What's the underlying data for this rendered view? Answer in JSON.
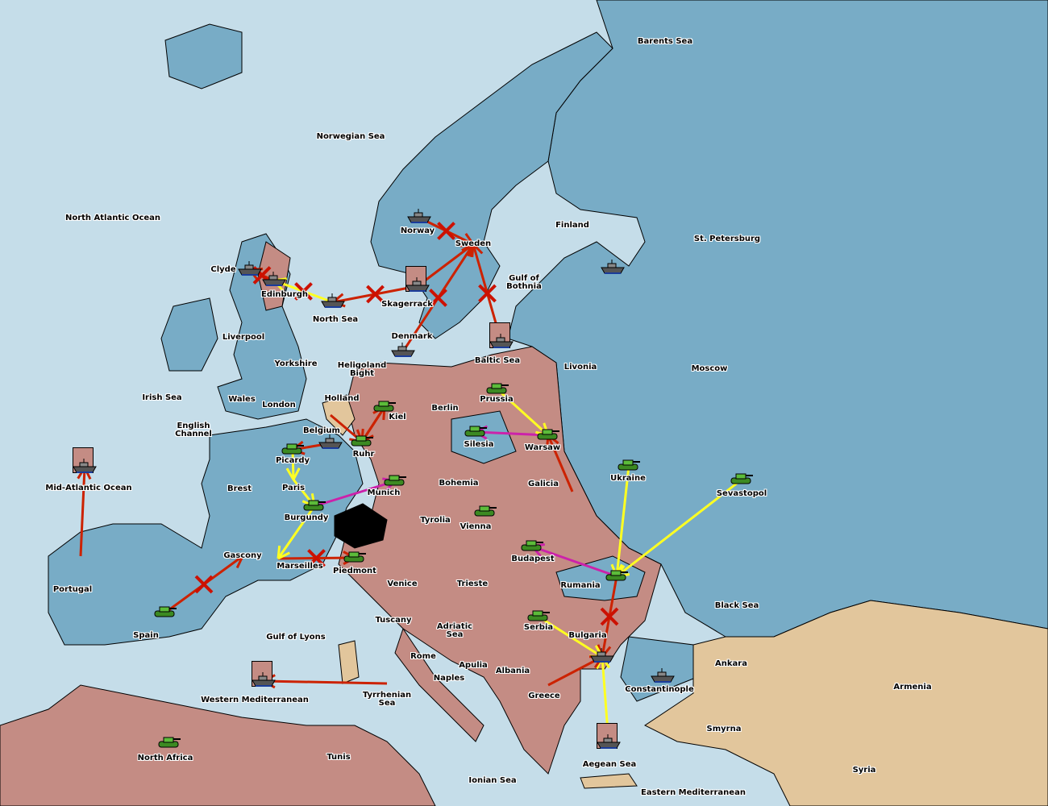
{
  "colors": {
    "sea": "#c5dde9",
    "blue_power": "#78acc6",
    "red_power": "#c48c84",
    "tan_power": "#e2c69c",
    "move": "#cc2200",
    "support": "#ffff22",
    "convoy": "#cc22aa"
  },
  "regions": [
    {
      "name": "Barents Sea"
    },
    {
      "name": "Norwegian Sea"
    },
    {
      "name": "North Atlantic Ocean"
    },
    {
      "name": "Finland"
    },
    {
      "name": "St. Petersburg"
    },
    {
      "name": "Norway"
    },
    {
      "name": "Sweden"
    },
    {
      "name": "Gulf of\nBothnia"
    },
    {
      "name": "Clyde"
    },
    {
      "name": "Edinburgh"
    },
    {
      "name": "Skagerrack"
    },
    {
      "name": "North Sea"
    },
    {
      "name": "Denmark"
    },
    {
      "name": "Liverpool"
    },
    {
      "name": "Baltic Sea"
    },
    {
      "name": "Livonia"
    },
    {
      "name": "Moscow"
    },
    {
      "name": "Yorkshire"
    },
    {
      "name": "Heligoland\nBight"
    },
    {
      "name": "Irish Sea"
    },
    {
      "name": "Wales"
    },
    {
      "name": "London"
    },
    {
      "name": "Holland"
    },
    {
      "name": "Prussia"
    },
    {
      "name": "Berlin"
    },
    {
      "name": "Kiel"
    },
    {
      "name": "English\nChannel"
    },
    {
      "name": "Belgium"
    },
    {
      "name": "Silesia"
    },
    {
      "name": "Warsaw"
    },
    {
      "name": "Ruhr"
    },
    {
      "name": "Picardy"
    },
    {
      "name": "Ukraine"
    },
    {
      "name": "Paris"
    },
    {
      "name": "Bohemia"
    },
    {
      "name": "Galicia"
    },
    {
      "name": "Mid-Atlantic Ocean"
    },
    {
      "name": "Brest"
    },
    {
      "name": "Munich"
    },
    {
      "name": "Sevastopol"
    },
    {
      "name": "Burgundy"
    },
    {
      "name": "Tyrolia"
    },
    {
      "name": "Vienna"
    },
    {
      "name": "Gascony"
    },
    {
      "name": "Budapest"
    },
    {
      "name": "Marseilles"
    },
    {
      "name": "Piedmont"
    },
    {
      "name": "Venice"
    },
    {
      "name": "Trieste"
    },
    {
      "name": "Rumania"
    },
    {
      "name": "Portugal"
    },
    {
      "name": "Black Sea"
    },
    {
      "name": "Tuscany"
    },
    {
      "name": "Adriatic\nSea"
    },
    {
      "name": "Serbia"
    },
    {
      "name": "Bulgaria"
    },
    {
      "name": "Spain"
    },
    {
      "name": "Gulf of Lyons"
    },
    {
      "name": "Rome"
    },
    {
      "name": "Apulia"
    },
    {
      "name": "Ankara"
    },
    {
      "name": "Albania"
    },
    {
      "name": "Naples"
    },
    {
      "name": "Armenia"
    },
    {
      "name": "Constantinople"
    },
    {
      "name": "Greece"
    },
    {
      "name": "Tyrrhenian\nSea"
    },
    {
      "name": "Western Mediterranean"
    },
    {
      "name": "Smyrna"
    },
    {
      "name": "Tunis"
    },
    {
      "name": "North Africa"
    },
    {
      "name": "Aegean Sea"
    },
    {
      "name": "Syria"
    },
    {
      "name": "Ionian Sea"
    },
    {
      "name": "Eastern Mediterranean"
    }
  ],
  "units": [
    {
      "type": "fleet",
      "at": "Clyde"
    },
    {
      "type": "fleet",
      "at": "Edinburgh"
    },
    {
      "type": "fleet",
      "at": "North Sea"
    },
    {
      "type": "fleet",
      "at": "Norway"
    },
    {
      "type": "fleet",
      "at": "Skagerrack",
      "dislodged": true
    },
    {
      "type": "fleet",
      "at": "Denmark"
    },
    {
      "type": "fleet",
      "at": "Baltic Sea",
      "dislodged": true
    },
    {
      "type": "fleet",
      "at": "Belgium"
    },
    {
      "type": "fleet",
      "at": "St. Petersburg"
    },
    {
      "type": "fleet",
      "at": "Mid-Atlantic Ocean",
      "dislodged": true
    },
    {
      "type": "fleet",
      "at": "Western Mediterranean",
      "dislodged": true
    },
    {
      "type": "fleet",
      "at": "Bulgaria"
    },
    {
      "type": "fleet",
      "at": "Constantinople"
    },
    {
      "type": "fleet",
      "at": "Aegean Sea",
      "dislodged": true
    },
    {
      "type": "army",
      "at": "Kiel"
    },
    {
      "type": "army",
      "at": "Ruhr"
    },
    {
      "type": "army",
      "at": "Picardy"
    },
    {
      "type": "army",
      "at": "Burgundy"
    },
    {
      "type": "army",
      "at": "Munich"
    },
    {
      "type": "army",
      "at": "Prussia"
    },
    {
      "type": "army",
      "at": "Silesia"
    },
    {
      "type": "army",
      "at": "Warsaw"
    },
    {
      "type": "army",
      "at": "Vienna"
    },
    {
      "type": "army",
      "at": "Budapest"
    },
    {
      "type": "army",
      "at": "Rumania"
    },
    {
      "type": "army",
      "at": "Ukraine"
    },
    {
      "type": "army",
      "at": "Sevastopol"
    },
    {
      "type": "army",
      "at": "Serbia"
    },
    {
      "type": "army",
      "at": "Piedmont"
    },
    {
      "type": "army",
      "at": "Spain"
    },
    {
      "type": "army",
      "at": "North Africa"
    }
  ],
  "orders": [
    {
      "from": "Edinburgh",
      "to": "Clyde",
      "kind": "move",
      "failed": true
    },
    {
      "from": "North Sea",
      "to": "Edinburgh",
      "kind": "support",
      "failed": true
    },
    {
      "from": "Skagerrack",
      "to": "North Sea",
      "kind": "move",
      "failed": true
    },
    {
      "from": "Norway",
      "to": "Sweden",
      "kind": "move",
      "failed": true
    },
    {
      "from": "Denmark",
      "to": "Sweden",
      "kind": "move",
      "failed": true
    },
    {
      "from": "Baltic Sea",
      "to": "Sweden",
      "kind": "move",
      "failed": true
    },
    {
      "from": "Skagerrack",
      "to": "Sweden",
      "kind": "move"
    },
    {
      "from": "English Channel",
      "to": "Belgium",
      "kind": "move"
    },
    {
      "from": "Ruhr",
      "to": "Kiel",
      "kind": "move"
    },
    {
      "from": "Kiel",
      "to": "Ruhr",
      "kind": "move"
    },
    {
      "from": "Holland",
      "to": "Ruhr",
      "kind": "move"
    },
    {
      "from": "Picardy",
      "to": "Paris",
      "kind": "support"
    },
    {
      "from": "Paris",
      "to": "Burgundy",
      "kind": "support"
    },
    {
      "from": "Belgium",
      "to": "Picardy",
      "kind": "move"
    },
    {
      "from": "Burgundy",
      "to": "Munich",
      "kind": "convoy"
    },
    {
      "from": "Warsaw",
      "to": "Silesia",
      "kind": "convoy"
    },
    {
      "from": "Prussia",
      "to": "Warsaw",
      "kind": "support"
    },
    {
      "from": "Galicia",
      "to": "Warsaw",
      "kind": "move"
    },
    {
      "from": "Rumania",
      "to": "Budapest",
      "kind": "convoy"
    },
    {
      "from": "Ukraine",
      "to": "Rumania",
      "kind": "support"
    },
    {
      "from": "Sevastopol",
      "to": "Rumania",
      "kind": "support"
    },
    {
      "from": "Rumania",
      "to": "Bulgaria",
      "kind": "move",
      "failed": true
    },
    {
      "from": "Serbia",
      "to": "Bulgaria",
      "kind": "support"
    },
    {
      "from": "Aegean Sea",
      "to": "Bulgaria",
      "kind": "support"
    },
    {
      "from": "Greece",
      "to": "Bulgaria",
      "kind": "move"
    },
    {
      "from": "Spain",
      "to": "Gascony",
      "kind": "move",
      "failed": true
    },
    {
      "from": "Portugal",
      "to": "Mid-Atlantic Ocean",
      "kind": "move"
    },
    {
      "from": "Tyrrhenian\nSea",
      "to": "Western Mediterranean",
      "kind": "move"
    },
    {
      "from": "Marseilles",
      "to": "Piedmont",
      "kind": "move",
      "failed": true
    },
    {
      "from": "Burgundy",
      "to": "Marseilles",
      "kind": "support"
    }
  ]
}
